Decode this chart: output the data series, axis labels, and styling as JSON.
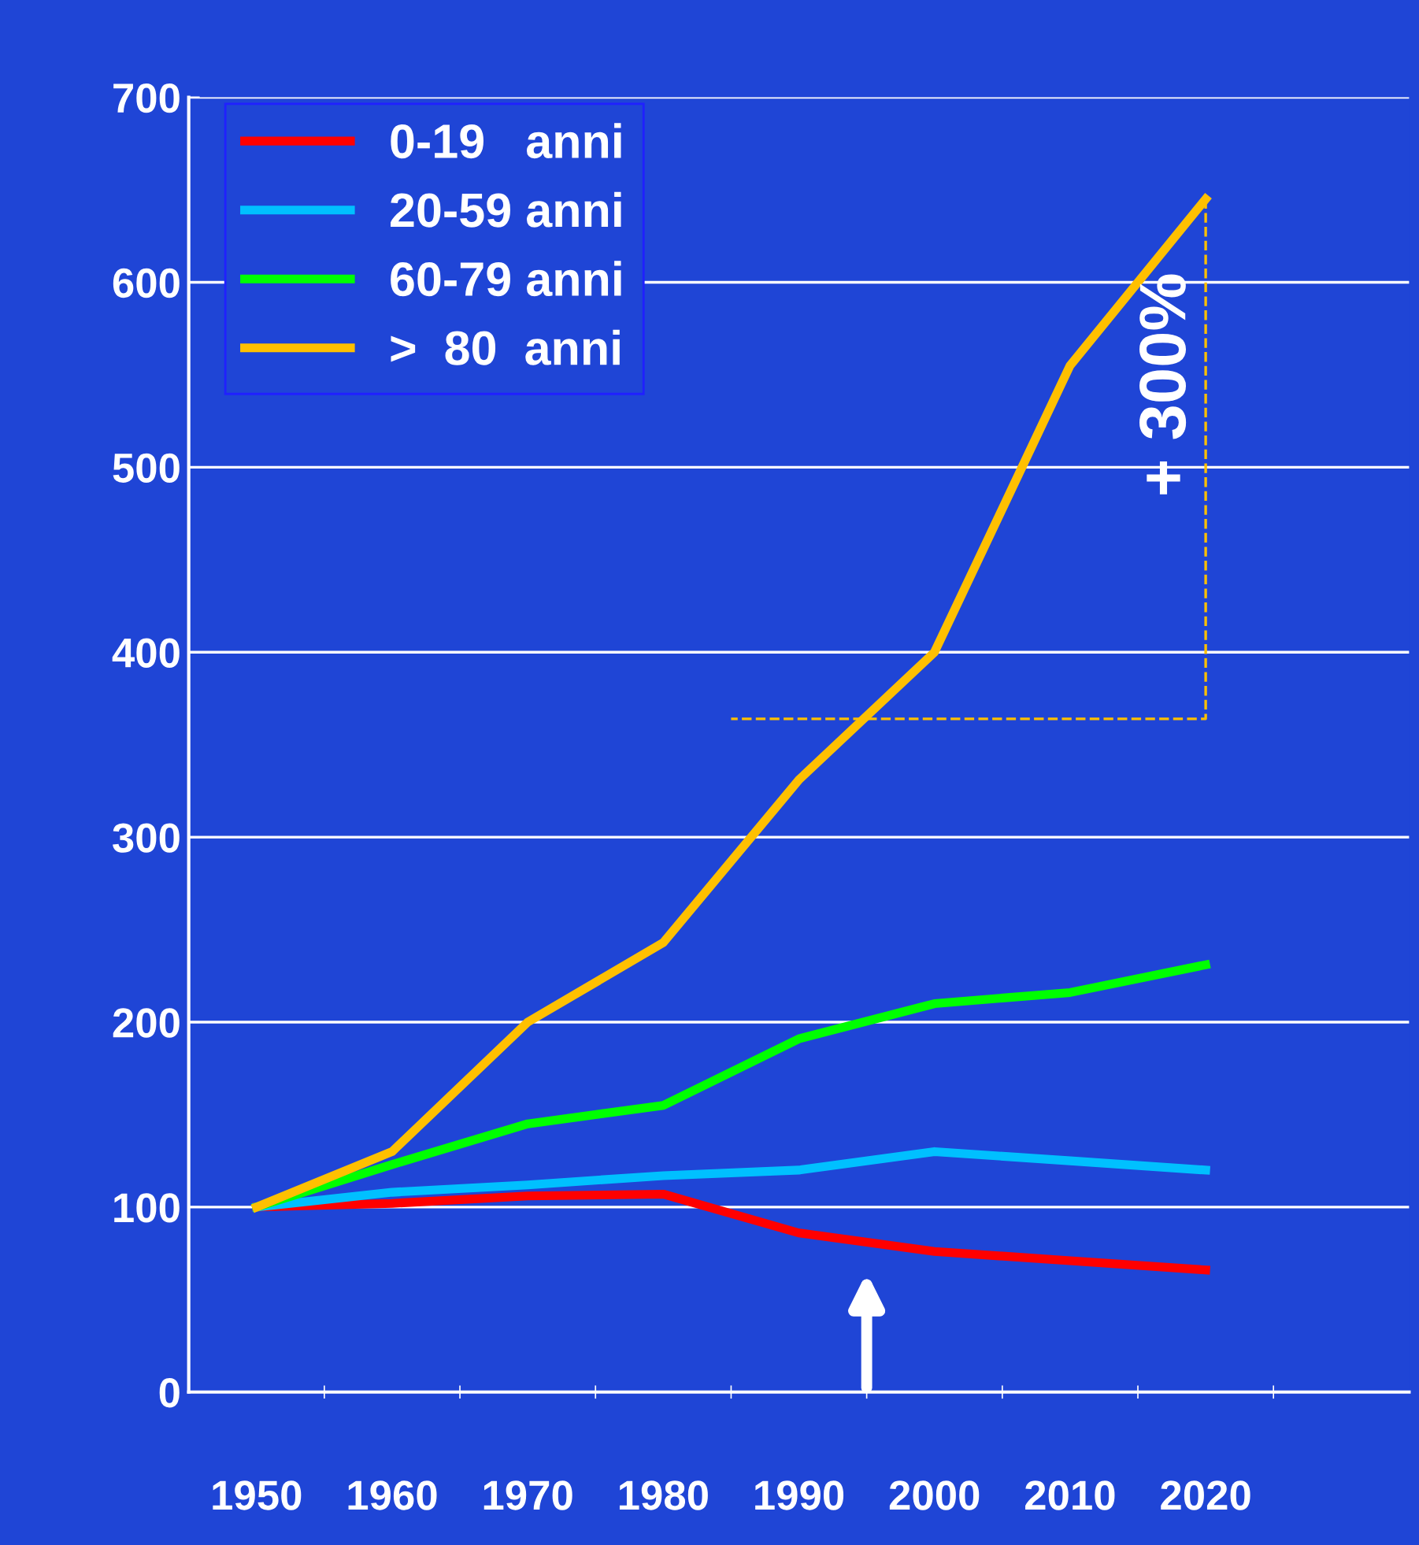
{
  "chart_data": {
    "type": "line",
    "categories": [
      "1950",
      "1960",
      "1970",
      "1980",
      "1990",
      "2000",
      "2010",
      "2020"
    ],
    "series": [
      {
        "name": "0-19   anni",
        "color": "#ff0000",
        "values": [
          100,
          102,
          106,
          107,
          86,
          76,
          71,
          66
        ]
      },
      {
        "name": "20-59 anni",
        "color": "#00c0ff",
        "values": [
          100,
          108,
          112,
          117,
          120,
          130,
          125,
          120
        ]
      },
      {
        "name": "60-79 anni",
        "color": "#00ff00",
        "values": [
          100,
          123,
          145,
          155,
          191,
          210,
          216,
          231
        ]
      },
      {
        "name": ">  80  anni",
        "color": "#ffc000",
        "values": [
          100,
          130,
          200,
          243,
          331,
          400,
          555,
          645
        ]
      }
    ],
    "ylim": [
      0,
      700
    ],
    "yticks": [
      0,
      100,
      200,
      300,
      400,
      500,
      600,
      700
    ],
    "grid": "y",
    "legend": "top left",
    "marker": "none",
    "line_style": "solid",
    "annotations": [
      {
        "text": "+ 300%",
        "x": "2020",
        "y": 645
      }
    ]
  }
}
